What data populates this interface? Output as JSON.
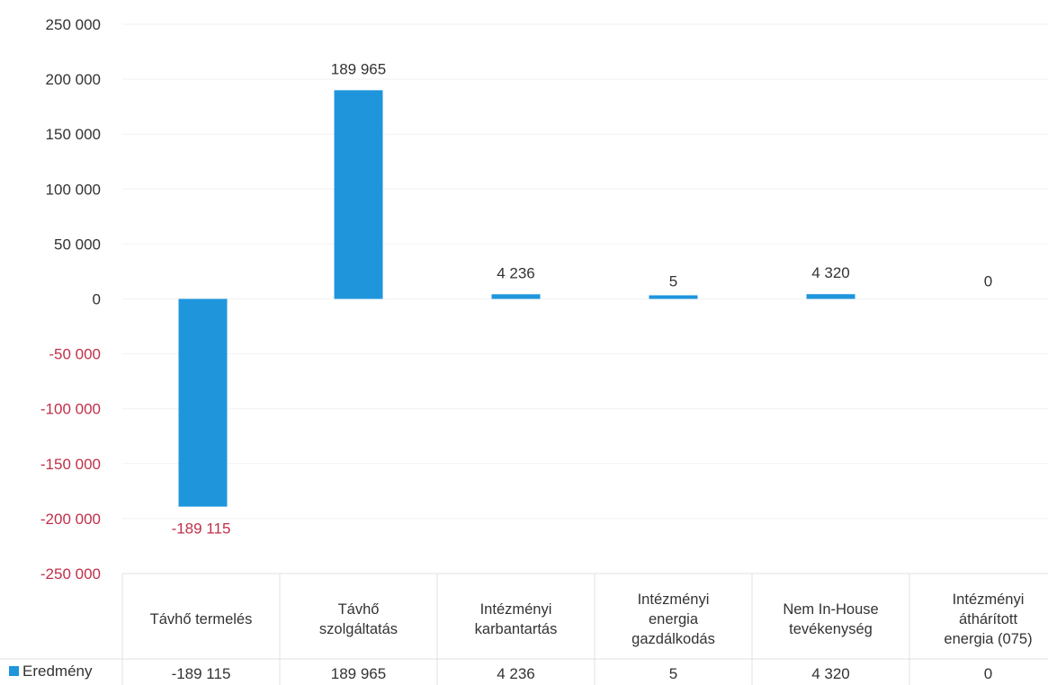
{
  "colors": {
    "bar": "#1f96dc",
    "negative_text": "#c0304a",
    "text": "#333333",
    "grid": "#f2f2f2",
    "table_line": "#e2e2e2"
  },
  "chart_data": {
    "type": "bar",
    "categories": [
      "Távhő termelés",
      "Távhő szolgáltatás",
      "Intézményi karbantartás",
      "Intézményi energia gazdálkodás",
      "Nem In-House tevékenység",
      "Intézményi áthárított energia (075)"
    ],
    "category_lines": [
      [
        "Távhő termelés"
      ],
      [
        "Távhő",
        "szolgáltatás"
      ],
      [
        "Intézményi",
        "karbantartás"
      ],
      [
        "Intézményi",
        "energia",
        "gazdálkodás"
      ],
      [
        "Nem In-House",
        "tevékenység"
      ],
      [
        "Intézményi",
        "áthárított",
        "energia (075)"
      ]
    ],
    "series": [
      {
        "name": "Eredmény",
        "values": [
          -189115,
          189965,
          4236,
          5,
          4320,
          0
        ],
        "value_labels": [
          "-189 115",
          "189 965",
          "4 236",
          "5",
          "4 320",
          "0"
        ]
      }
    ],
    "ylim": [
      -250000,
      250000
    ],
    "yticks": [
      250000,
      200000,
      150000,
      100000,
      50000,
      0,
      -50000,
      -100000,
      -150000,
      -200000,
      -250000
    ],
    "ytick_labels": [
      "250 000",
      "200 000",
      "150 000",
      "100 000",
      "50 000",
      "0",
      "-50 000",
      "-100 000",
      "-150 000",
      "-200 000",
      "-250 000"
    ],
    "grid": true,
    "legend": "data-table",
    "data_table": true
  }
}
